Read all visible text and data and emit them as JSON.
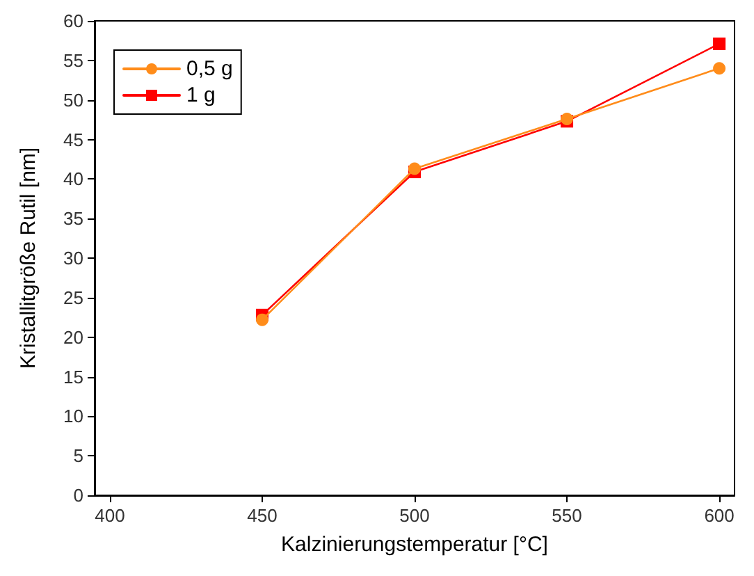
{
  "chart_data": {
    "type": "line",
    "xlabel": "Kalzinierungstemperatur [°C]",
    "ylabel": "Kristallitgröße Rutil [nm]",
    "x": [
      450,
      500,
      550,
      600
    ],
    "series": [
      {
        "name": "0,5 g",
        "color": "#ff8c1a",
        "values": [
          22.2,
          41.3,
          47.6,
          54
        ],
        "marker": "circle"
      },
      {
        "name": "1 g",
        "color": "#ff0000",
        "values": [
          22.8,
          40.9,
          47.3,
          57.1
        ],
        "marker": "square"
      }
    ],
    "xlim": [
      395,
      605
    ],
    "xticks": [
      400,
      450,
      500,
      550,
      600
    ],
    "ylim": [
      0,
      60
    ],
    "yticks": [
      0,
      5,
      10,
      15,
      20,
      25,
      30,
      35,
      40,
      45,
      50,
      55,
      60
    ],
    "grid": false,
    "legend": "top left",
    "line_style": "solid"
  }
}
